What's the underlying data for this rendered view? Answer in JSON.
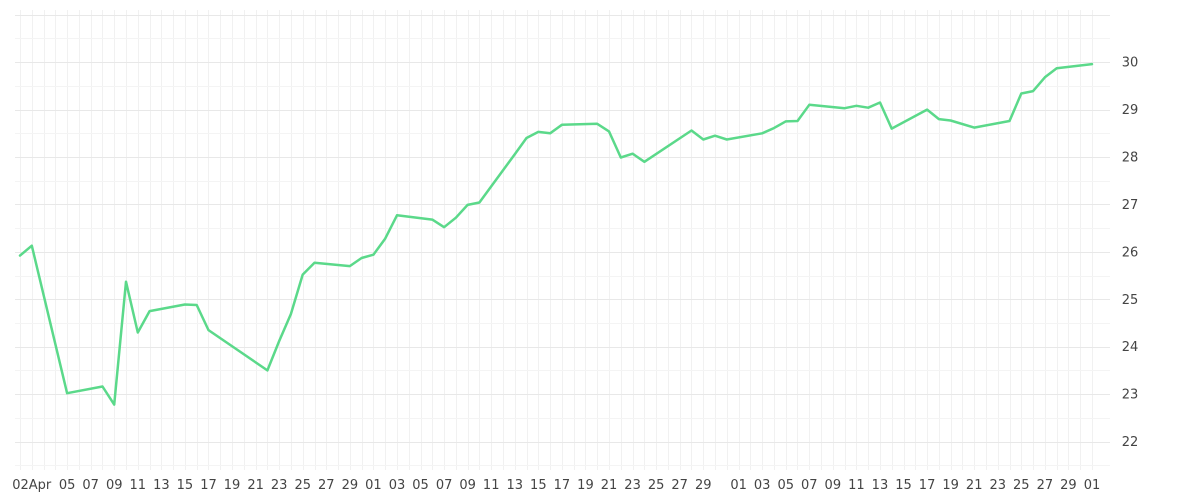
{
  "chart_data": {
    "type": "line",
    "title": "",
    "xlabel": "",
    "ylabel": "",
    "ylim": [
      21.4,
      31.1
    ],
    "y_ticks": [
      22,
      23,
      24,
      25,
      26,
      27,
      28,
      29,
      30
    ],
    "y_axis_side": "right",
    "grid": true,
    "x_tick_labels": [
      "02Apr",
      "05",
      "07",
      "09",
      "11",
      "13",
      "15",
      "17",
      "19",
      "21",
      "23",
      "25",
      "27",
      "29",
      "01",
      "03",
      "05",
      "07",
      "09",
      "11",
      "13",
      "15",
      "17",
      "19",
      "21",
      "23",
      "25",
      "27",
      "29",
      "01",
      "03",
      "05",
      "07",
      "09",
      "11",
      "13",
      "15",
      "17",
      "19",
      "21",
      "23",
      "25",
      "27",
      "29",
      "01"
    ],
    "x_tick_dates": [
      "2024-04-02",
      "2024-04-05",
      "2024-04-07",
      "2024-04-09",
      "2024-04-11",
      "2024-04-13",
      "2024-04-15",
      "2024-04-17",
      "2024-04-19",
      "2024-04-21",
      "2024-04-23",
      "2024-04-25",
      "2024-04-27",
      "2024-04-29",
      "2024-05-01",
      "2024-05-03",
      "2024-05-05",
      "2024-05-07",
      "2024-05-09",
      "2024-05-11",
      "2024-05-13",
      "2024-05-15",
      "2024-05-17",
      "2024-05-19",
      "2024-05-21",
      "2024-05-23",
      "2024-05-25",
      "2024-05-27",
      "2024-05-29",
      "2024-06-01",
      "2024-06-03",
      "2024-06-05",
      "2024-06-07",
      "2024-06-09",
      "2024-06-11",
      "2024-06-13",
      "2024-06-15",
      "2024-06-17",
      "2024-06-19",
      "2024-06-21",
      "2024-06-23",
      "2024-06-25",
      "2024-06-27",
      "2024-06-29",
      "2024-07-01"
    ],
    "series": [
      {
        "color": "#5bd98a",
        "x": [
          "2024-04-01",
          "2024-04-02",
          "2024-04-05",
          "2024-04-08",
          "2024-04-09",
          "2024-04-10",
          "2024-04-11",
          "2024-04-12",
          "2024-04-15",
          "2024-04-16",
          "2024-04-17",
          "2024-04-22",
          "2024-04-23",
          "2024-04-24",
          "2024-04-25",
          "2024-04-26",
          "2024-04-29",
          "2024-04-30",
          "2024-05-01",
          "2024-05-02",
          "2024-05-03",
          "2024-05-06",
          "2024-05-07",
          "2024-05-08",
          "2024-05-09",
          "2024-05-10",
          "2024-05-13",
          "2024-05-14",
          "2024-05-15",
          "2024-05-16",
          "2024-05-17",
          "2024-05-20",
          "2024-05-21",
          "2024-05-22",
          "2024-05-23",
          "2024-05-24",
          "2024-05-28",
          "2024-05-29",
          "2024-05-30",
          "2024-05-31",
          "2024-06-03",
          "2024-06-04",
          "2024-06-05",
          "2024-06-06",
          "2024-06-07",
          "2024-06-10",
          "2024-06-11",
          "2024-06-12",
          "2024-06-13",
          "2024-06-14",
          "2024-06-17",
          "2024-06-18",
          "2024-06-19",
          "2024-06-21",
          "2024-06-24",
          "2024-06-25",
          "2024-06-26",
          "2024-06-27",
          "2024-06-28",
          "2024-07-01"
        ],
        "values": [
          25.92,
          26.13,
          23.02,
          23.16,
          22.78,
          25.37,
          24.3,
          24.75,
          24.89,
          24.88,
          24.35,
          23.5,
          24.12,
          24.69,
          25.52,
          25.77,
          25.7,
          25.87,
          25.94,
          26.28,
          26.77,
          26.68,
          26.52,
          26.72,
          26.99,
          27.04,
          28.06,
          28.4,
          28.53,
          28.5,
          28.68,
          28.7,
          28.54,
          27.99,
          28.07,
          27.9,
          28.56,
          28.37,
          28.45,
          28.37,
          28.5,
          28.61,
          28.75,
          28.76,
          29.1,
          29.03,
          29.08,
          29.04,
          29.15,
          28.6,
          29.0,
          28.8,
          28.77,
          28.62,
          28.76,
          29.34,
          29.39,
          29.68,
          29.87,
          29.96
        ]
      }
    ]
  }
}
